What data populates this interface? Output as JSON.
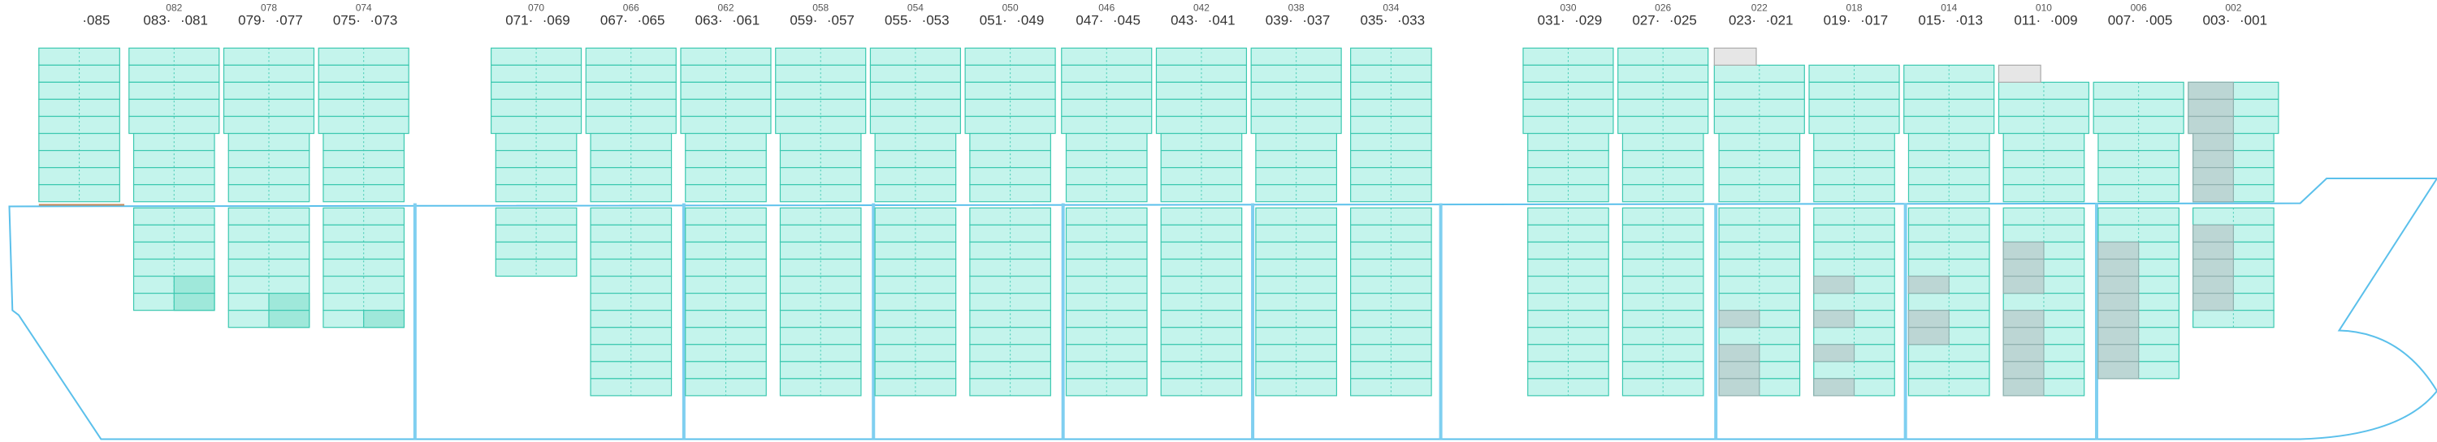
{
  "bays": [
    {
      "right": "·085"
    },
    {
      "left": "083·",
      "right": "·081",
      "even": "082"
    },
    {
      "left": "079·",
      "right": "·077",
      "even": "078"
    },
    {
      "left": "075·",
      "right": "·073",
      "even": "074"
    },
    {
      "left": "071·",
      "right": "·069",
      "even": "070"
    },
    {
      "left": "067·",
      "right": "·065",
      "even": "066"
    },
    {
      "left": "063·",
      "right": "·061",
      "even": "062"
    },
    {
      "left": "059·",
      "right": "·057",
      "even": "058"
    },
    {
      "left": "055·",
      "right": "·053",
      "even": "054"
    },
    {
      "left": "051·",
      "right": "·049",
      "even": "050"
    },
    {
      "left": "047·",
      "right": "·045",
      "even": "046"
    },
    {
      "left": "043·",
      "right": "·041",
      "even": "042"
    },
    {
      "left": "039·",
      "right": "·037",
      "even": "038"
    },
    {
      "left": "035·",
      "right": "·033",
      "even": "034"
    },
    {
      "left": "031·",
      "right": "·029",
      "even": "030"
    },
    {
      "left": "027·",
      "right": "·025",
      "even": "026"
    },
    {
      "left": "023·",
      "right": "·021",
      "even": "022"
    },
    {
      "left": "019·",
      "right": "·017",
      "even": "018"
    },
    {
      "left": "015·",
      "right": "·013",
      "even": "014"
    },
    {
      "left": "011·",
      "right": "·009",
      "even": "010"
    },
    {
      "left": "007·",
      "right": "·005",
      "even": "006"
    },
    {
      "left": "003·",
      "right": "·001",
      "even": "002"
    }
  ]
}
